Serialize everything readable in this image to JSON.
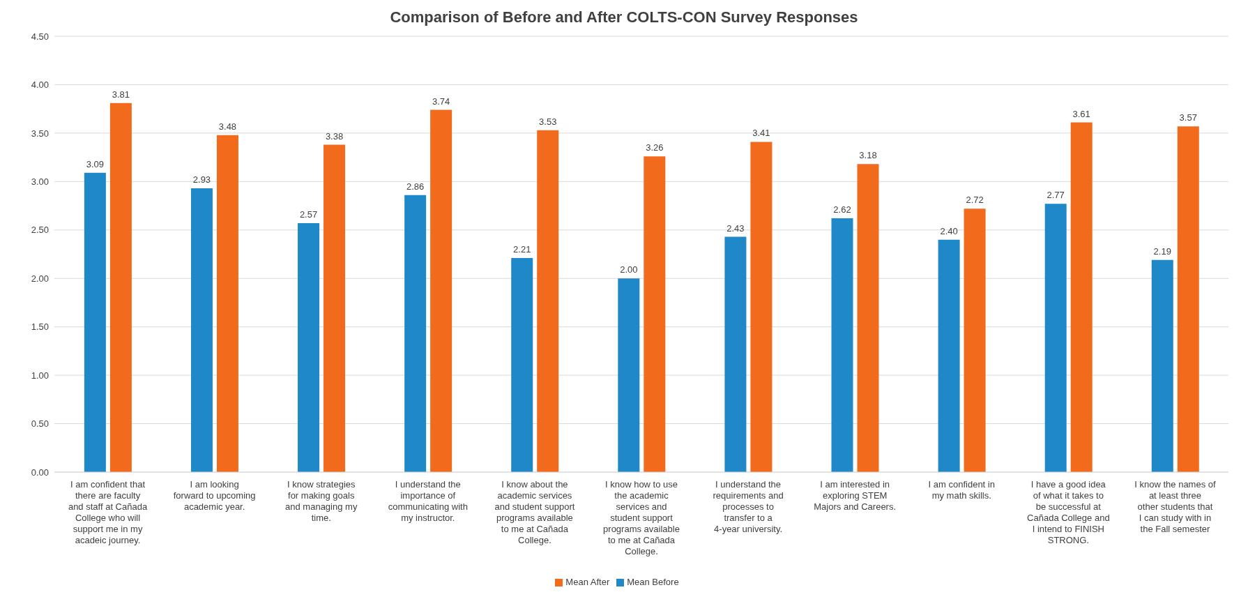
{
  "chart_data": {
    "type": "bar",
    "title": "Comparison of Before and After COLTS-CON Survey Responses",
    "categories": [
      "I am confident that there are faculty and staff at Cañada College who will support me in my acadeic journey.",
      "I am looking forward to upcoming academic year.",
      "I know strategies for making goals and managing my time.",
      "I understand the importance of communicating with my instructor.",
      "I know about the academic services and student support programs available to me at Cañada College.",
      "I know how to use the academic services and student support programs available to me at Cañada College.",
      "I understand the requirements and processes to transfer to a 4-year university.",
      "I am interested in exploring STEM Majors and Careers.",
      "I am confident in my math skills.",
      "I have a good idea of what it takes to be successful at Cañada College and I intend to FINISH STRONG.",
      "I know the names of at least three other students that I can study with in the Fall semester"
    ],
    "series": [
      {
        "name": "Mean Before",
        "color": "#1e88c8",
        "values": [
          3.09,
          2.93,
          2.57,
          2.86,
          2.21,
          2.0,
          2.43,
          2.62,
          2.4,
          2.77,
          2.19
        ],
        "value_labels": [
          "3.09",
          "2.93",
          "2.57",
          "2.86",
          "2.21",
          "2.00",
          "2.43",
          "2.62",
          "2.40",
          "2.77",
          "2.19"
        ]
      },
      {
        "name": "Mean After",
        "color": "#f26a1b",
        "values": [
          3.81,
          3.48,
          3.38,
          3.74,
          3.53,
          3.26,
          3.41,
          3.18,
          2.72,
          3.61,
          3.57
        ],
        "value_labels": [
          "3.81",
          "3.48",
          "3.38",
          "3.74",
          "3.53",
          "3.26",
          "3.41",
          "3.18",
          "2.72",
          "3.61",
          "3.57"
        ]
      }
    ],
    "ylim": [
      0,
      4.5
    ],
    "yticks": [
      {
        "value": 0,
        "label": "0.00"
      },
      {
        "value": 0.5,
        "label": "0.50"
      },
      {
        "value": 1,
        "label": "1.00"
      },
      {
        "value": 1.5,
        "label": "1.50"
      },
      {
        "value": 2,
        "label": "2.00"
      },
      {
        "value": 2.5,
        "label": "2.50"
      },
      {
        "value": 3,
        "label": "3.00"
      },
      {
        "value": 3.5,
        "label": "3.50"
      },
      {
        "value": 4,
        "label": "4.00"
      },
      {
        "value": 4.5,
        "label": "4.50"
      }
    ],
    "grid": "y",
    "legend": "bottom"
  }
}
